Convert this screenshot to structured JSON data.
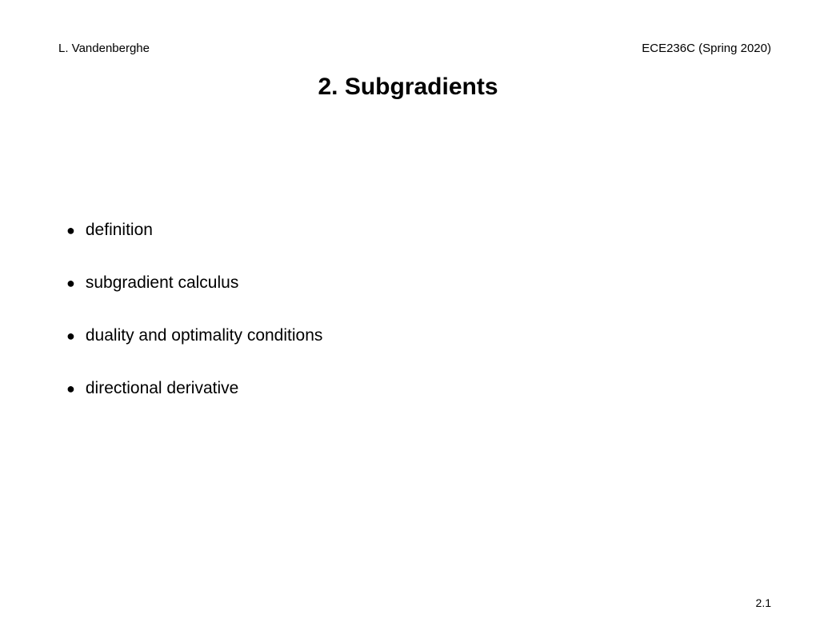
{
  "header": {
    "author": "L. Vandenberghe",
    "course": "ECE236C (Spring 2020)"
  },
  "title": "2. Subgradients",
  "bullets": {
    "item0": "definition",
    "item1": "subgradient calculus",
    "item2": "duality and optimality conditions",
    "item3": "directional derivative"
  },
  "pageNumber": "2.1",
  "style": {
    "backgroundColor": "#ffffff",
    "textColor": "#000000",
    "headerFontSize": 15,
    "titleFontSize": 30,
    "bodyFontSize": 21,
    "pageNumFontSize": 14
  }
}
